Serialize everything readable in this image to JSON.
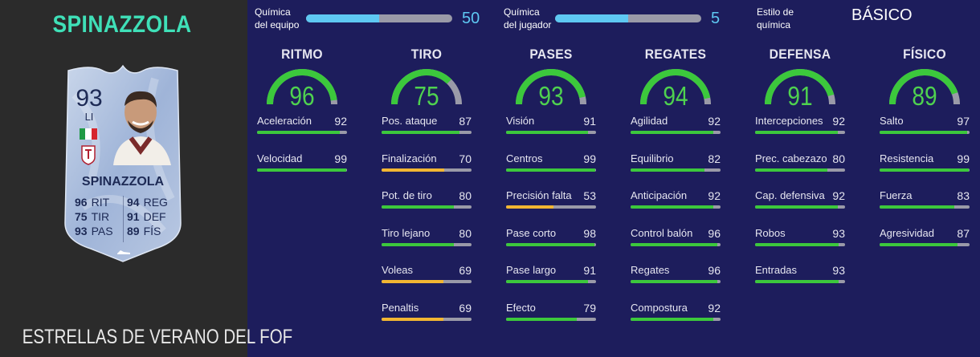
{
  "player": {
    "name": "SPINAZZOLA",
    "promo": "ESTRELLAS DE VERANO DEL FOF",
    "rating": "93",
    "position": "LI",
    "card_name": "SPINAZZOLA",
    "stats": [
      {
        "value": "96",
        "label": "RIT"
      },
      {
        "value": "94",
        "label": "REG"
      },
      {
        "value": "75",
        "label": "TIR"
      },
      {
        "value": "91",
        "label": "DEF"
      },
      {
        "value": "93",
        "label": "PAS"
      },
      {
        "value": "89",
        "label": "FÍS"
      }
    ]
  },
  "chemistry": {
    "team_label": "Química del equipo",
    "team_value": "50",
    "team_fraction": 0.5,
    "player_label": "Química del jugador",
    "player_value": "5",
    "player_fraction": 0.5,
    "style_label": "Estilo de química",
    "style_value": "BÁSICO"
  },
  "colors": {
    "green": "#3cc83c",
    "yellow": "#f2b632",
    "track": "#9a9aa8",
    "accent": "#5ec8f2"
  },
  "categories": [
    {
      "title": "RITMO",
      "value": "96",
      "fraction": 0.96,
      "attributes": [
        {
          "label": "Aceleración",
          "value": "92",
          "fraction": 0.92,
          "color": "green"
        },
        {
          "label": "Velocidad",
          "value": "99",
          "fraction": 0.99,
          "color": "green"
        }
      ]
    },
    {
      "title": "TIRO",
      "value": "75",
      "fraction": 0.75,
      "attributes": [
        {
          "label": "Pos. ataque",
          "value": "87",
          "fraction": 0.87,
          "color": "green"
        },
        {
          "label": "Finalización",
          "value": "70",
          "fraction": 0.7,
          "color": "yellow"
        },
        {
          "label": "Pot. de tiro",
          "value": "80",
          "fraction": 0.8,
          "color": "green"
        },
        {
          "label": "Tiro lejano",
          "value": "80",
          "fraction": 0.8,
          "color": "green"
        },
        {
          "label": "Voleas",
          "value": "69",
          "fraction": 0.69,
          "color": "yellow"
        },
        {
          "label": "Penaltis",
          "value": "69",
          "fraction": 0.69,
          "color": "yellow"
        }
      ]
    },
    {
      "title": "PASES",
      "value": "93",
      "fraction": 0.93,
      "attributes": [
        {
          "label": "Visión",
          "value": "91",
          "fraction": 0.91,
          "color": "green"
        },
        {
          "label": "Centros",
          "value": "99",
          "fraction": 0.99,
          "color": "green"
        },
        {
          "label": "Precisión falta",
          "value": "53",
          "fraction": 0.53,
          "color": "yellow"
        },
        {
          "label": "Pase corto",
          "value": "98",
          "fraction": 0.98,
          "color": "green"
        },
        {
          "label": "Pase largo",
          "value": "91",
          "fraction": 0.91,
          "color": "green"
        },
        {
          "label": "Efecto",
          "value": "79",
          "fraction": 0.79,
          "color": "green"
        }
      ]
    },
    {
      "title": "REGATES",
      "value": "94",
      "fraction": 0.94,
      "attributes": [
        {
          "label": "Agilidad",
          "value": "92",
          "fraction": 0.92,
          "color": "green"
        },
        {
          "label": "Equilibrio",
          "value": "82",
          "fraction": 0.82,
          "color": "green"
        },
        {
          "label": "Anticipación",
          "value": "92",
          "fraction": 0.92,
          "color": "green"
        },
        {
          "label": "Control balón",
          "value": "96",
          "fraction": 0.96,
          "color": "green"
        },
        {
          "label": "Regates",
          "value": "96",
          "fraction": 0.96,
          "color": "green"
        },
        {
          "label": "Compostura",
          "value": "92",
          "fraction": 0.92,
          "color": "green"
        }
      ]
    },
    {
      "title": "DEFENSA",
      "value": "91",
      "fraction": 0.91,
      "attributes": [
        {
          "label": "Intercepciones",
          "value": "92",
          "fraction": 0.92,
          "color": "green"
        },
        {
          "label": "Prec. cabezazo",
          "value": "80",
          "fraction": 0.8,
          "color": "green"
        },
        {
          "label": "Cap. defensiva",
          "value": "92",
          "fraction": 0.92,
          "color": "green"
        },
        {
          "label": "Robos",
          "value": "93",
          "fraction": 0.93,
          "color": "green"
        },
        {
          "label": "Entradas",
          "value": "93",
          "fraction": 0.93,
          "color": "green"
        }
      ]
    },
    {
      "title": "FÍSICO",
      "value": "89",
      "fraction": 0.89,
      "attributes": [
        {
          "label": "Salto",
          "value": "97",
          "fraction": 0.97,
          "color": "green"
        },
        {
          "label": "Resistencia",
          "value": "99",
          "fraction": 0.99,
          "color": "green"
        },
        {
          "label": "Fuerza",
          "value": "83",
          "fraction": 0.83,
          "color": "green"
        },
        {
          "label": "Agresividad",
          "value": "87",
          "fraction": 0.87,
          "color": "green"
        }
      ]
    }
  ]
}
